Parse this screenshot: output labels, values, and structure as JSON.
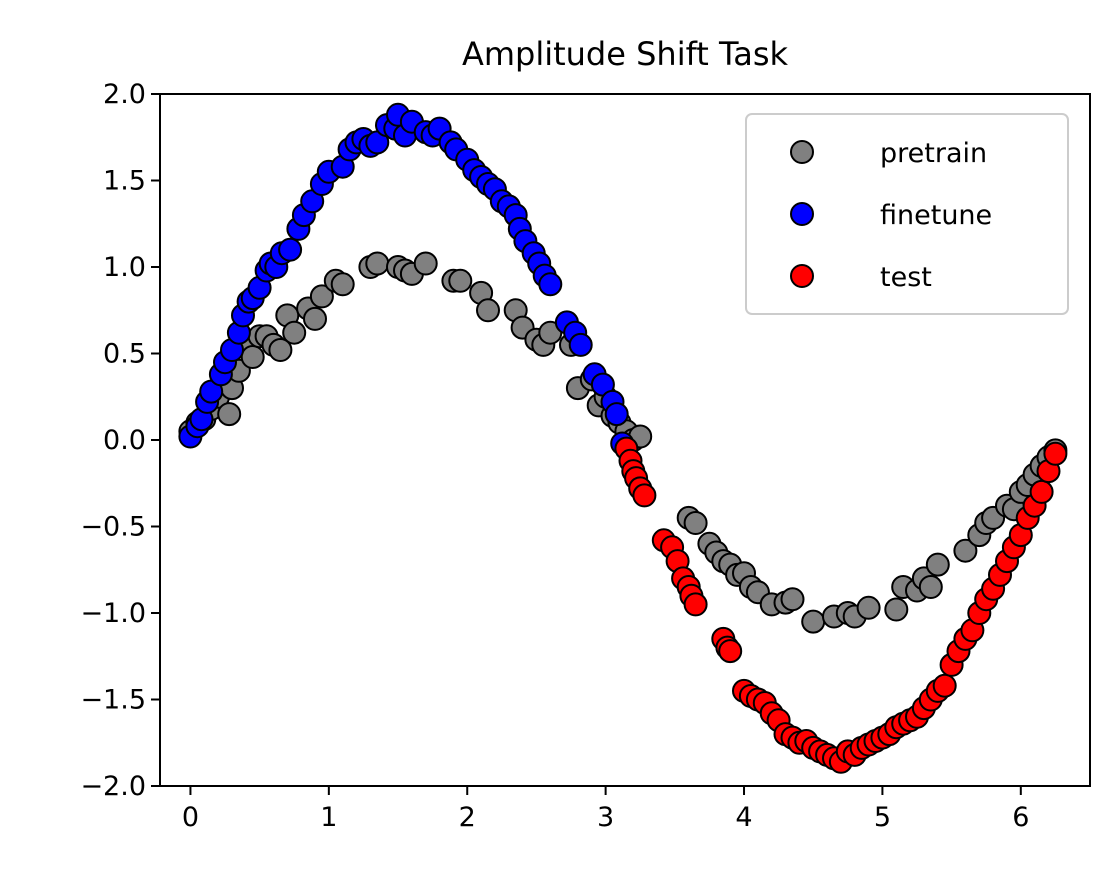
{
  "chart_data": {
    "type": "scatter",
    "title": "Amplitude Shift Task",
    "xlabel": "",
    "ylabel": "",
    "xlim": [
      -0.22,
      6.5
    ],
    "ylim": [
      -2.0,
      2.0
    ],
    "x_ticks": [
      0,
      1,
      2,
      3,
      4,
      5,
      6
    ],
    "x_tick_labels": [
      "0",
      "1",
      "2",
      "3",
      "4",
      "5",
      "6"
    ],
    "y_ticks": [
      2.0,
      1.5,
      1.0,
      0.5,
      0.0,
      -0.5,
      -1.0,
      -1.5,
      -2.0
    ],
    "y_tick_labels": [
      "2.0",
      "1.5",
      "1.0",
      "0.5",
      "0.0",
      "−0.5",
      "−1.0",
      "−1.5",
      "−2.0"
    ],
    "grid": false,
    "legend_position": "top-right",
    "series": [
      {
        "name": "pretrain",
        "color": "#808080",
        "x": [
          0.0,
          0.05,
          0.1,
          0.15,
          0.2,
          0.28,
          0.3,
          0.35,
          0.42,
          0.45,
          0.5,
          0.55,
          0.6,
          0.65,
          0.7,
          0.75,
          0.85,
          0.9,
          0.95,
          1.05,
          1.1,
          1.3,
          1.35,
          1.5,
          1.55,
          1.6,
          1.7,
          1.9,
          1.95,
          2.1,
          2.15,
          2.35,
          2.4,
          2.5,
          2.55,
          2.6,
          2.75,
          2.8,
          2.9,
          2.95,
          3.0,
          3.05,
          3.1,
          3.15,
          3.2,
          3.25,
          3.6,
          3.65,
          3.75,
          3.8,
          3.85,
          3.9,
          3.95,
          4.0,
          4.05,
          4.1,
          4.2,
          4.3,
          4.35,
          4.5,
          4.65,
          4.75,
          4.8,
          4.9,
          5.1,
          5.15,
          5.25,
          5.3,
          5.35,
          5.4,
          5.6,
          5.7,
          5.75,
          5.8,
          5.9,
          5.95,
          6.0,
          6.05,
          6.1,
          6.15,
          6.2,
          6.25
        ],
        "y": [
          0.05,
          0.1,
          0.12,
          0.18,
          0.25,
          0.15,
          0.3,
          0.4,
          0.55,
          0.48,
          0.6,
          0.6,
          0.55,
          0.52,
          0.72,
          0.62,
          0.76,
          0.7,
          0.83,
          0.92,
          0.9,
          1.0,
          1.02,
          1.0,
          0.98,
          0.96,
          1.02,
          0.92,
          0.92,
          0.85,
          0.75,
          0.75,
          0.65,
          0.58,
          0.55,
          0.62,
          0.55,
          0.3,
          0.35,
          0.2,
          0.25,
          0.14,
          0.1,
          0.05,
          0.0,
          0.02,
          -0.45,
          -0.48,
          -0.6,
          -0.65,
          -0.7,
          -0.72,
          -0.78,
          -0.77,
          -0.85,
          -0.88,
          -0.95,
          -0.94,
          -0.92,
          -1.05,
          -1.02,
          -1.0,
          -1.02,
          -0.97,
          -0.98,
          -0.85,
          -0.87,
          -0.8,
          -0.85,
          -0.72,
          -0.64,
          -0.55,
          -0.48,
          -0.45,
          -0.38,
          -0.4,
          -0.3,
          -0.26,
          -0.2,
          -0.15,
          -0.1,
          -0.06
        ]
      },
      {
        "name": "finetune",
        "color": "#0000ff",
        "x": [
          0.0,
          0.05,
          0.08,
          0.12,
          0.15,
          0.22,
          0.25,
          0.3,
          0.35,
          0.38,
          0.42,
          0.45,
          0.5,
          0.55,
          0.58,
          0.62,
          0.66,
          0.72,
          0.78,
          0.82,
          0.88,
          0.95,
          1.0,
          1.1,
          1.15,
          1.2,
          1.25,
          1.3,
          1.35,
          1.42,
          1.48,
          1.5,
          1.55,
          1.6,
          1.7,
          1.75,
          1.8,
          1.88,
          1.92,
          2.0,
          2.05,
          2.1,
          2.15,
          2.2,
          2.25,
          2.3,
          2.35,
          2.38,
          2.42,
          2.48,
          2.52,
          2.56,
          2.6,
          2.72,
          2.78,
          2.82,
          2.92,
          2.98,
          3.05,
          3.08,
          3.12
        ],
        "y": [
          0.02,
          0.08,
          0.12,
          0.22,
          0.28,
          0.38,
          0.45,
          0.52,
          0.62,
          0.72,
          0.8,
          0.82,
          0.88,
          0.98,
          1.02,
          1.0,
          1.08,
          1.1,
          1.22,
          1.3,
          1.38,
          1.48,
          1.55,
          1.58,
          1.68,
          1.72,
          1.74,
          1.7,
          1.72,
          1.82,
          1.8,
          1.88,
          1.76,
          1.84,
          1.78,
          1.76,
          1.8,
          1.72,
          1.68,
          1.62,
          1.56,
          1.52,
          1.48,
          1.45,
          1.38,
          1.35,
          1.3,
          1.22,
          1.15,
          1.08,
          1.02,
          0.95,
          0.9,
          0.68,
          0.62,
          0.55,
          0.38,
          0.32,
          0.22,
          0.15,
          -0.02
        ]
      },
      {
        "name": "test",
        "color": "#ff0000",
        "x": [
          3.15,
          3.18,
          3.2,
          3.22,
          3.25,
          3.28,
          3.42,
          3.48,
          3.52,
          3.56,
          3.6,
          3.62,
          3.65,
          3.85,
          3.88,
          3.9,
          4.0,
          4.05,
          4.1,
          4.15,
          4.2,
          4.25,
          4.3,
          4.35,
          4.4,
          4.45,
          4.5,
          4.55,
          4.6,
          4.65,
          4.7,
          4.75,
          4.8,
          4.85,
          4.9,
          4.95,
          5.0,
          5.05,
          5.1,
          5.15,
          5.2,
          5.25,
          5.3,
          5.35,
          5.4,
          5.45,
          5.5,
          5.55,
          5.6,
          5.65,
          5.7,
          5.75,
          5.8,
          5.85,
          5.9,
          5.95,
          6.0,
          6.05,
          6.1,
          6.15,
          6.2,
          6.25
        ],
        "y": [
          -0.05,
          -0.12,
          -0.18,
          -0.22,
          -0.28,
          -0.32,
          -0.58,
          -0.62,
          -0.7,
          -0.8,
          -0.85,
          -0.9,
          -0.95,
          -1.15,
          -1.2,
          -1.22,
          -1.45,
          -1.48,
          -1.5,
          -1.52,
          -1.58,
          -1.62,
          -1.7,
          -1.72,
          -1.75,
          -1.74,
          -1.78,
          -1.8,
          -1.82,
          -1.84,
          -1.86,
          -1.8,
          -1.82,
          -1.78,
          -1.76,
          -1.74,
          -1.72,
          -1.7,
          -1.66,
          -1.64,
          -1.62,
          -1.6,
          -1.55,
          -1.5,
          -1.45,
          -1.42,
          -1.3,
          -1.22,
          -1.15,
          -1.1,
          -1.0,
          -0.92,
          -0.86,
          -0.78,
          -0.7,
          -0.62,
          -0.55,
          -0.45,
          -0.38,
          -0.3,
          -0.18,
          -0.08
        ]
      }
    ]
  }
}
